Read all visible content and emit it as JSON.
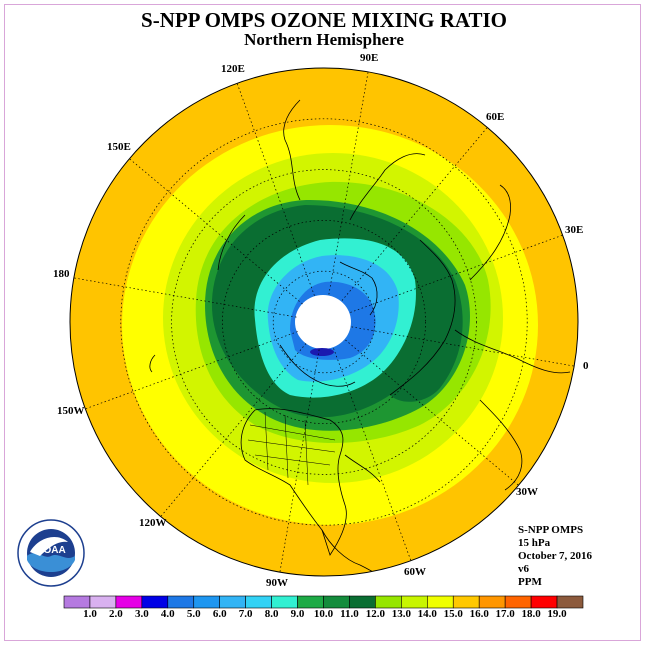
{
  "title": "S-NPP OMPS OZONE MIXING RATIO",
  "subtitle": "Northern Hemisphere",
  "longitude_labels": [
    "90E",
    "60E",
    "30E",
    "0",
    "30W",
    "60W",
    "90W",
    "120W",
    "150W",
    "180",
    "150E",
    "120E"
  ],
  "info": {
    "instrument": "S-NPP OMPS",
    "level": "15 hPa",
    "date": "October 7, 2016",
    "version": "v6",
    "units": "PPM"
  },
  "logo_text": "NOAA",
  "colorbar": {
    "labels": [
      "1.0",
      "2.0",
      "3.0",
      "4.0",
      "5.0",
      "6.0",
      "7.0",
      "8.0",
      "9.0",
      "10.0",
      "11.0",
      "12.0",
      "13.0",
      "14.0",
      "15.0",
      "16.0",
      "17.0",
      "18.0",
      "19.0"
    ],
    "colors": [
      "#b57ae0",
      "#d9b1f0",
      "#e600e6",
      "#0000e6",
      "#1e78e6",
      "#1e96f0",
      "#32b4f5",
      "#32d2f5",
      "#32f0d2",
      "#1eaa46",
      "#148c3c",
      "#0a6e32",
      "#96e600",
      "#c8f500",
      "#f0ff00",
      "#ffc800",
      "#ff9600",
      "#ff6400",
      "#ff0000",
      "#8c5a3c"
    ]
  },
  "map_colors": {
    "outer": "#ffc400",
    "ring_yellow": "#ffff00",
    "ring_lime": "#d2f500",
    "ring_green1": "#96e600",
    "ring_green2": "#1e9632",
    "ring_dkgreen": "#0a6e32",
    "ring_cyan": "#32f0d2",
    "ring_ltblue": "#32b4f5",
    "ring_blue": "#1e78e6",
    "core": "#ffffff"
  }
}
